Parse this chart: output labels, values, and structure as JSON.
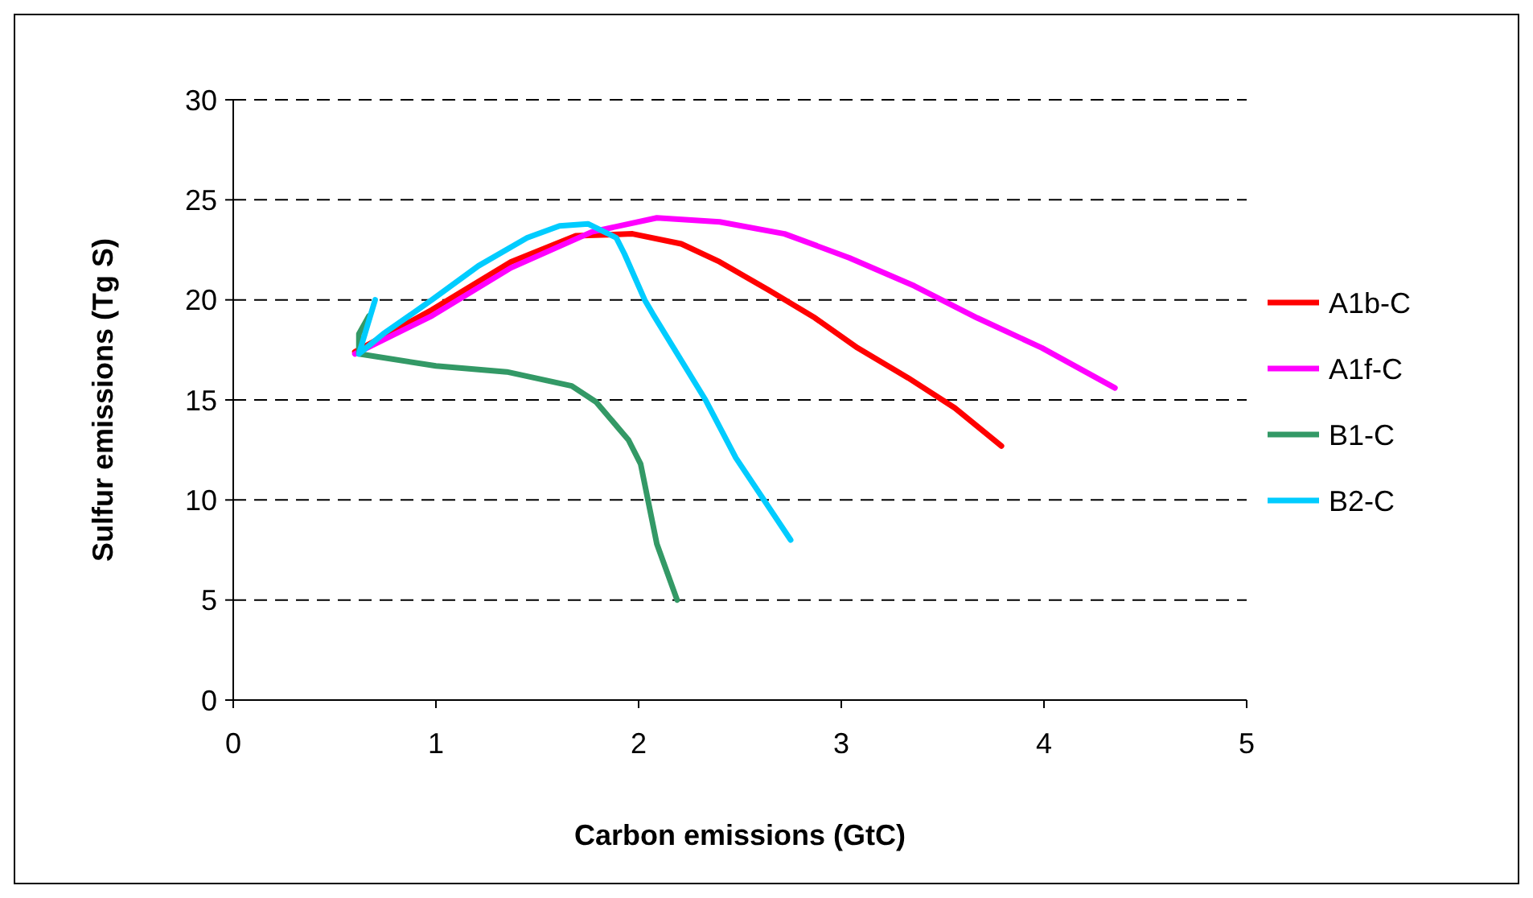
{
  "chart_data": {
    "type": "line",
    "xlabel": "Carbon emissions (GtC)",
    "ylabel": "Sulfur emissions (Tg S)",
    "xlim": [
      0,
      5
    ],
    "ylim": [
      0,
      30
    ],
    "xticks": [
      0,
      1,
      2,
      3,
      4,
      5
    ],
    "yticks": [
      0,
      5,
      10,
      15,
      20,
      25,
      30
    ],
    "grid": "y",
    "legend": "right",
    "marker": "none",
    "line_style": "solid",
    "series": [
      {
        "name": "A1b-C",
        "color": "#ff0000",
        "x": [
          0.6,
          0.98,
          1.37,
          1.69,
          1.97,
          2.21,
          2.4,
          2.64,
          2.87,
          3.08,
          3.33,
          3.56,
          3.79
        ],
        "values": [
          17.4,
          19.5,
          21.9,
          23.2,
          23.3,
          22.8,
          21.9,
          20.5,
          19.1,
          17.6,
          16.1,
          14.6,
          12.7
        ]
      },
      {
        "name": "A1f-C",
        "color": "#ff00ff",
        "x": [
          0.6,
          0.98,
          1.37,
          1.77,
          2.09,
          2.4,
          2.72,
          3.04,
          3.36,
          3.67,
          3.99,
          4.35
        ],
        "values": [
          17.3,
          19.2,
          21.6,
          23.4,
          24.1,
          23.9,
          23.3,
          22.1,
          20.7,
          19.1,
          17.6,
          15.6
        ]
      },
      {
        "name": "B1-C",
        "color": "#339966",
        "x": [
          0.67,
          0.62,
          0.62,
          1.0,
          1.35,
          1.67,
          1.79,
          1.95,
          2.01,
          2.09,
          2.19
        ],
        "values": [
          19.2,
          18.3,
          17.3,
          16.7,
          16.4,
          15.7,
          14.9,
          13.0,
          11.8,
          7.8,
          5.0
        ]
      },
      {
        "name": "B2-C",
        "color": "#00ccff",
        "x": [
          0.7,
          0.62,
          0.74,
          0.98,
          1.21,
          1.45,
          1.61,
          1.75,
          1.89,
          1.93,
          2.03,
          2.07,
          2.33,
          2.48,
          2.75
        ],
        "values": [
          20.0,
          17.3,
          18.3,
          20.0,
          21.7,
          23.1,
          23.7,
          23.8,
          23.1,
          22.3,
          20.0,
          19.3,
          15.0,
          12.1,
          8.0
        ]
      }
    ]
  }
}
